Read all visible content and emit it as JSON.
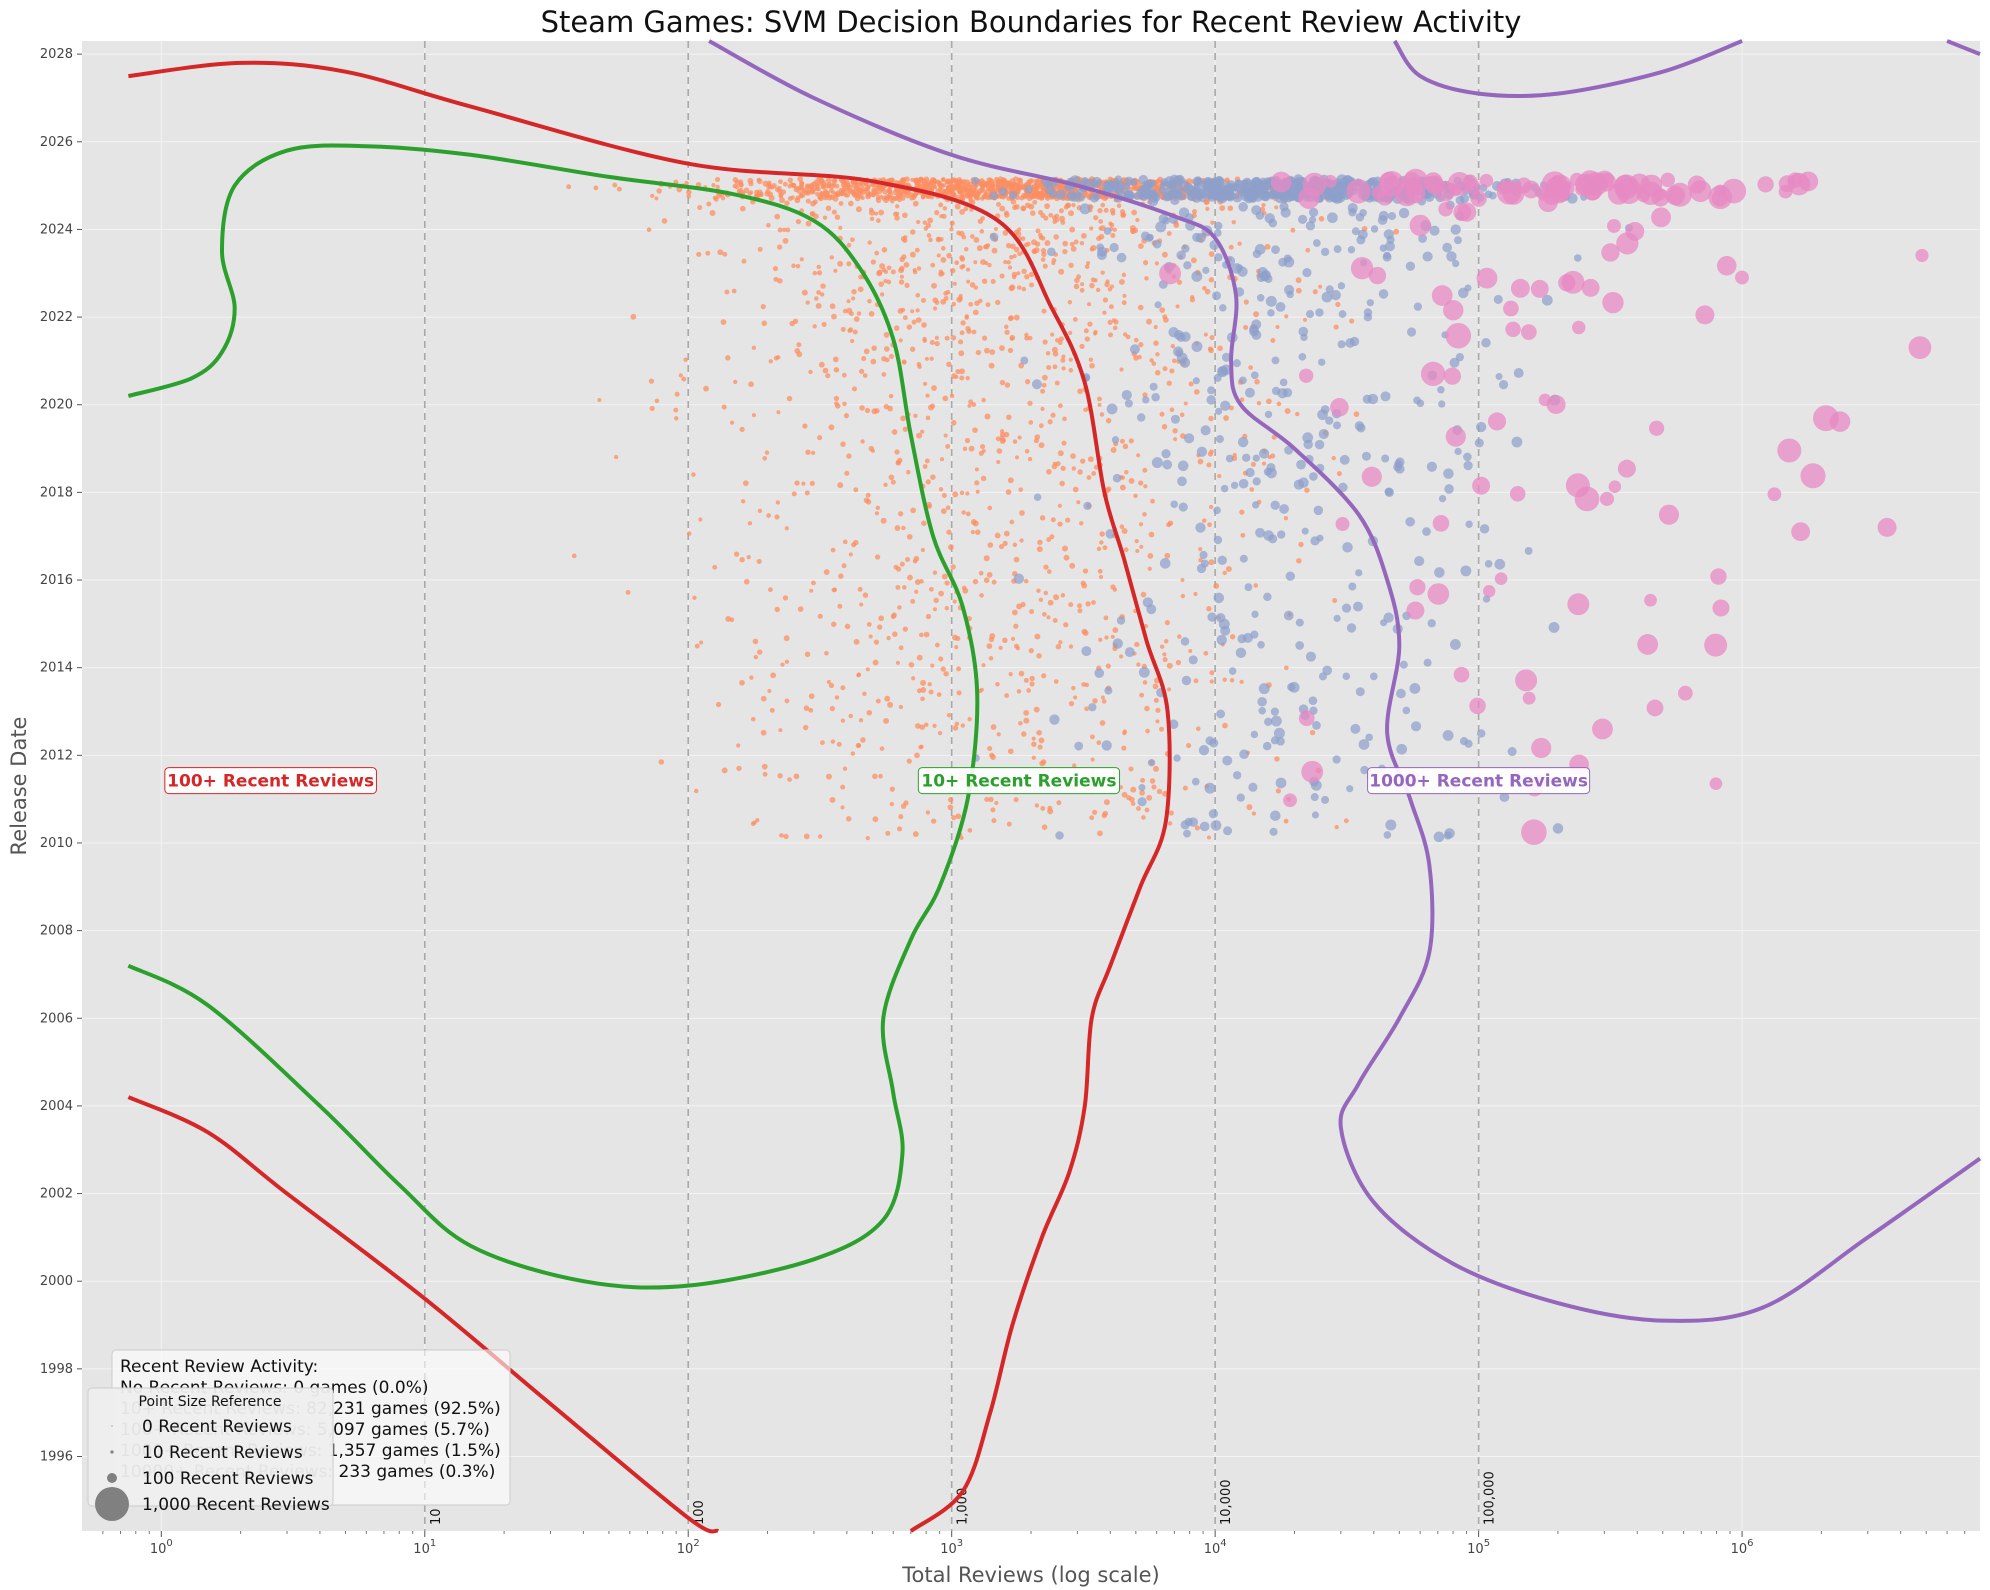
{
  "chart_data": {
    "type": "scatter",
    "title": "Steam Games: SVM Decision Boundaries for Recent Review Activity",
    "xlabel": "Total Reviews (log scale)",
    "ylabel": "Release Date",
    "x_scale": "log",
    "xlim": [
      0.5,
      8000000
    ],
    "ylim": [
      1994.3,
      2028.3
    ],
    "x_ticks": [
      {
        "value": 1,
        "base": "10",
        "exp": "0"
      },
      {
        "value": 10,
        "base": "10",
        "exp": "1"
      },
      {
        "value": 100,
        "base": "10",
        "exp": "2"
      },
      {
        "value": 1000,
        "base": "10",
        "exp": "3"
      },
      {
        "value": 10000,
        "base": "10",
        "exp": "4"
      },
      {
        "value": 100000,
        "base": "10",
        "exp": "5"
      },
      {
        "value": 1000000,
        "base": "10",
        "exp": "6"
      }
    ],
    "y_ticks": [
      "1996",
      "1998",
      "2000",
      "2002",
      "2004",
      "2006",
      "2008",
      "2010",
      "2012",
      "2014",
      "2016",
      "2018",
      "2020",
      "2022",
      "2024",
      "2026",
      "2028"
    ],
    "grid": true,
    "background": "#e5e5e5",
    "reference_lines": [
      {
        "x": 10,
        "label": "10"
      },
      {
        "x": 100,
        "label": "100"
      },
      {
        "x": 1000,
        "label": "1,000"
      },
      {
        "x": 10000,
        "label": "10,000"
      },
      {
        "x": 100000,
        "label": "100,000"
      }
    ],
    "region_labels": [
      {
        "text": "100+ Recent Reviews",
        "x": 2.6,
        "y": 2011.4,
        "color": "#d62728"
      },
      {
        "text": "10+ Recent Reviews",
        "x": 1800,
        "y": 2011.4,
        "color": "#2ca02c"
      },
      {
        "text": "1000+ Recent Reviews",
        "x": 100000,
        "y": 2011.4,
        "color": "#9467bd"
      }
    ],
    "categories": [
      {
        "name": "No Recent Reviews",
        "color": "#66c2a5"
      },
      {
        "name": "10+ Recent Reviews",
        "color": "#fc8d62"
      },
      {
        "name": "100+ Recent Reviews",
        "color": "#8da0cb"
      },
      {
        "name": "1000+ Recent Reviews",
        "color": "#e78ac3"
      }
    ],
    "boundaries": [
      {
        "name": "10+ Recent Reviews",
        "color": "#2ca02c",
        "segments": [
          [
            [
              0.75,
              2020.2
            ],
            [
              1.3,
              2020.6
            ],
            [
              1.7,
              2021.2
            ],
            [
              1.9,
              2022.2
            ],
            [
              1.7,
              2023.5
            ],
            [
              1.9,
              2025.0
            ],
            [
              3,
              2025.8
            ],
            [
              6,
              2025.9
            ],
            [
              15,
              2025.7
            ],
            [
              50,
              2025.2
            ],
            [
              150,
              2024.8
            ],
            [
              300,
              2024.2
            ],
            [
              450,
              2023.1
            ],
            [
              600,
              2021.5
            ],
            [
              700,
              2019.3
            ],
            [
              850,
              2017.0
            ],
            [
              1100,
              2015.4
            ],
            [
              1250,
              2013.4
            ],
            [
              1150,
              2011.0
            ],
            [
              900,
              2009.0
            ],
            [
              700,
              2007.8
            ],
            [
              550,
              2006.0
            ],
            [
              600,
              2004.3
            ],
            [
              650,
              2002.9
            ],
            [
              550,
              2001.4
            ],
            [
              300,
              2000.5
            ],
            [
              100,
              1999.9
            ],
            [
              40,
              2000.0
            ],
            [
              15,
              2000.8
            ],
            [
              8,
              2002.2
            ],
            [
              4,
              2004.0
            ],
            [
              1.5,
              2006.3
            ],
            [
              0.75,
              2007.2
            ]
          ]
        ]
      },
      {
        "name": "100+ Recent Reviews",
        "color": "#d62728",
        "segments": [
          [
            [
              0.75,
              2027.5
            ],
            [
              2,
              2027.8
            ],
            [
              5,
              2027.6
            ],
            [
              15,
              2026.8
            ],
            [
              100,
              2025.5
            ],
            [
              500,
              2025.1
            ],
            [
              1500,
              2024.2
            ],
            [
              2400,
              2022.2
            ],
            [
              3200,
              2020.5
            ],
            [
              3800,
              2018.0
            ],
            [
              4500,
              2016.5
            ],
            [
              5500,
              2014.6
            ],
            [
              6600,
              2013.0
            ],
            [
              6500,
              2010.5
            ],
            [
              5200,
              2009.0
            ],
            [
              4000,
              2007.2
            ],
            [
              3400,
              2006.0
            ],
            [
              3200,
              2004.0
            ],
            [
              2800,
              2002.5
            ],
            [
              2200,
              2001.0
            ],
            [
              1700,
              1999.0
            ],
            [
              1400,
              1997.0
            ],
            [
              1100,
              1995.2
            ],
            [
              700,
              1994.3
            ]
          ],
          [
            [
              0.75,
              2004.2
            ],
            [
              1.5,
              2003.4
            ],
            [
              3,
              2002.0
            ],
            [
              10,
              1999.6
            ],
            [
              30,
              1997.2
            ],
            [
              100,
              1994.6
            ],
            [
              130,
              1994.3
            ]
          ]
        ]
      },
      {
        "name": "1000+ Recent Reviews",
        "color": "#9467bd",
        "segments": [
          [
            [
              120,
              2028.3
            ],
            [
              300,
              2027.0
            ],
            [
              1000,
              2025.7
            ],
            [
              3000,
              2025.0
            ],
            [
              7000,
              2024.3
            ],
            [
              10000,
              2023.8
            ],
            [
              12000,
              2022.5
            ],
            [
              11500,
              2021.0
            ],
            [
              12500,
              2020.0
            ],
            [
              20000,
              2019.0
            ],
            [
              35000,
              2017.5
            ],
            [
              45000,
              2016.0
            ],
            [
              50000,
              2014.5
            ],
            [
              45000,
              2012.5
            ],
            [
              55000,
              2011.0
            ],
            [
              65000,
              2009.5
            ],
            [
              65000,
              2007.5
            ],
            [
              50000,
              2006.0
            ],
            [
              35000,
              2004.5
            ],
            [
              30000,
              2003.5
            ],
            [
              40000,
              2001.8
            ],
            [
              80000,
              2000.4
            ],
            [
              200000,
              1999.5
            ],
            [
              500000,
              1999.1
            ],
            [
              1200000,
              1999.4
            ],
            [
              3000000,
              2001.0
            ],
            [
              8000000,
              2002.8
            ]
          ],
          [
            [
              48000,
              2028.3
            ],
            [
              60000,
              2027.5
            ],
            [
              100000,
              2027.1
            ],
            [
              200000,
              2027.1
            ],
            [
              500000,
              2027.6
            ],
            [
              1000000,
              2028.3
            ]
          ],
          [
            [
              6000000,
              2028.3
            ],
            [
              8000000,
              2028.0
            ]
          ]
        ]
      }
    ],
    "legend_activity": {
      "title": "Recent Review Activity:",
      "rows": [
        "No Recent Reviews: 0 games (0.0%)",
        "10+ Recent Reviews: 82,231 games (92.5%)",
        "100+ Recent Reviews: 5,097 games (5.7%)",
        "1000+ Recent Reviews: 1,357 games (1.5%)",
        "10000+ Recent Reviews: 233 games (0.3%)"
      ]
    },
    "legend_size": {
      "title": "Point Size Reference",
      "items": [
        {
          "label": "0 Recent Reviews",
          "value": 0
        },
        {
          "label": "10 Recent Reviews",
          "value": 10
        },
        {
          "label": "100 Recent Reviews",
          "value": 100
        },
        {
          "label": "1,000 Recent Reviews",
          "value": 1000
        }
      ]
    }
  }
}
